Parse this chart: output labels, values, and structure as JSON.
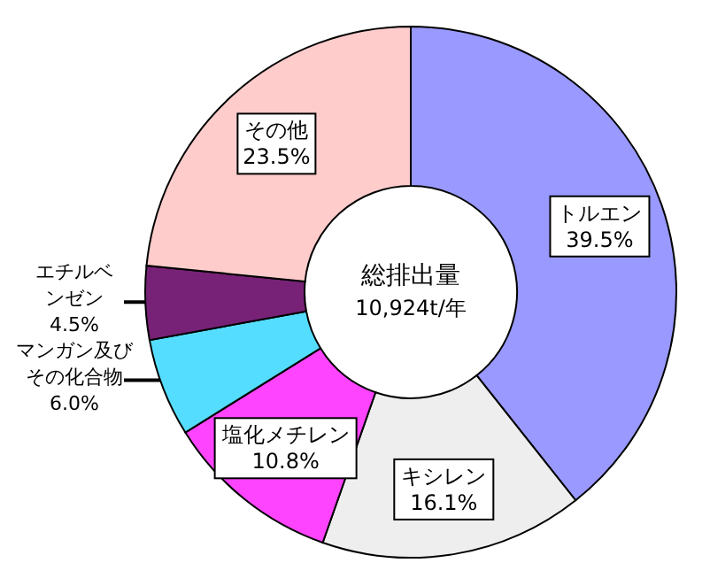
{
  "chart_data": {
    "type": "donut",
    "categories": [
      "トルエン",
      "キシレン",
      "塩化メチレン",
      "マンガン及びその化合物",
      "エチルベンゼン",
      "その他"
    ],
    "values": [
      39.5,
      16.1,
      10.8,
      6.0,
      4.5,
      23.5
    ],
    "value_labels": [
      "39.5%",
      "16.1%",
      "10.8%",
      "6.0%",
      "4.5%",
      "23.5%"
    ],
    "colors": [
      "#9999ff",
      "#eeeeee",
      "#ff44ff",
      "#55ddff",
      "#772277",
      "#ffcccc"
    ],
    "annotations": [
      "総排出量",
      "10,924t/年"
    ]
  }
}
